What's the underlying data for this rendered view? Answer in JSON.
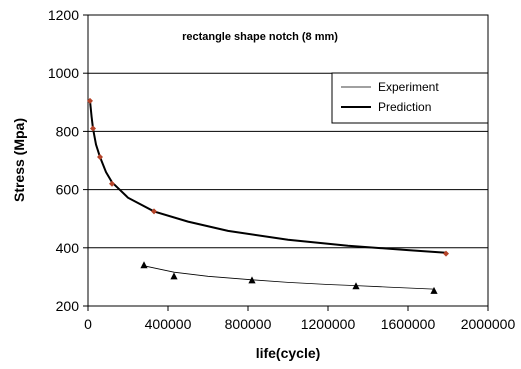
{
  "chart_data": {
    "type": "scatter",
    "title": "rectangle shape notch (8 mm)",
    "xlabel": "life(cycle)",
    "ylabel": "Stress (Mpa)",
    "xlim": [
      0,
      2000000
    ],
    "ylim": [
      200,
      1200
    ],
    "xticks": [
      0,
      400000,
      800000,
      1200000,
      1600000,
      2000000
    ],
    "yticks": [
      200,
      400,
      600,
      800,
      1000,
      1200
    ],
    "grid": "horizontal",
    "legend_position": "top-right",
    "series": [
      {
        "name": "Experiment",
        "marker": "triangle",
        "line": "thin",
        "color": "#000000",
        "points": [
          [
            280000,
            340
          ],
          [
            430000,
            302
          ],
          [
            820000,
            288
          ],
          [
            1340000,
            268
          ],
          [
            1730000,
            252
          ]
        ],
        "trend": [
          [
            280000,
            338
          ],
          [
            430000,
            316
          ],
          [
            600000,
            302
          ],
          [
            820000,
            290
          ],
          [
            1000000,
            281
          ],
          [
            1200000,
            274
          ],
          [
            1340000,
            270
          ],
          [
            1500000,
            265
          ],
          [
            1730000,
            258
          ]
        ]
      },
      {
        "name": "Prediction",
        "marker": "diamond",
        "line": "thick",
        "color": "#000000",
        "marker_color": "#b5442a",
        "points": [
          [
            10000,
            905
          ],
          [
            25000,
            810
          ],
          [
            60000,
            712
          ],
          [
            120000,
            620
          ],
          [
            330000,
            525
          ],
          [
            1790000,
            380
          ]
        ],
        "trend": [
          [
            10000,
            905
          ],
          [
            18000,
            850
          ],
          [
            25000,
            810
          ],
          [
            40000,
            755
          ],
          [
            60000,
            712
          ],
          [
            90000,
            660
          ],
          [
            120000,
            625
          ],
          [
            200000,
            572
          ],
          [
            330000,
            525
          ],
          [
            500000,
            490
          ],
          [
            700000,
            458
          ],
          [
            1000000,
            428
          ],
          [
            1300000,
            407
          ],
          [
            1600000,
            392
          ],
          [
            1790000,
            383
          ]
        ]
      }
    ]
  }
}
